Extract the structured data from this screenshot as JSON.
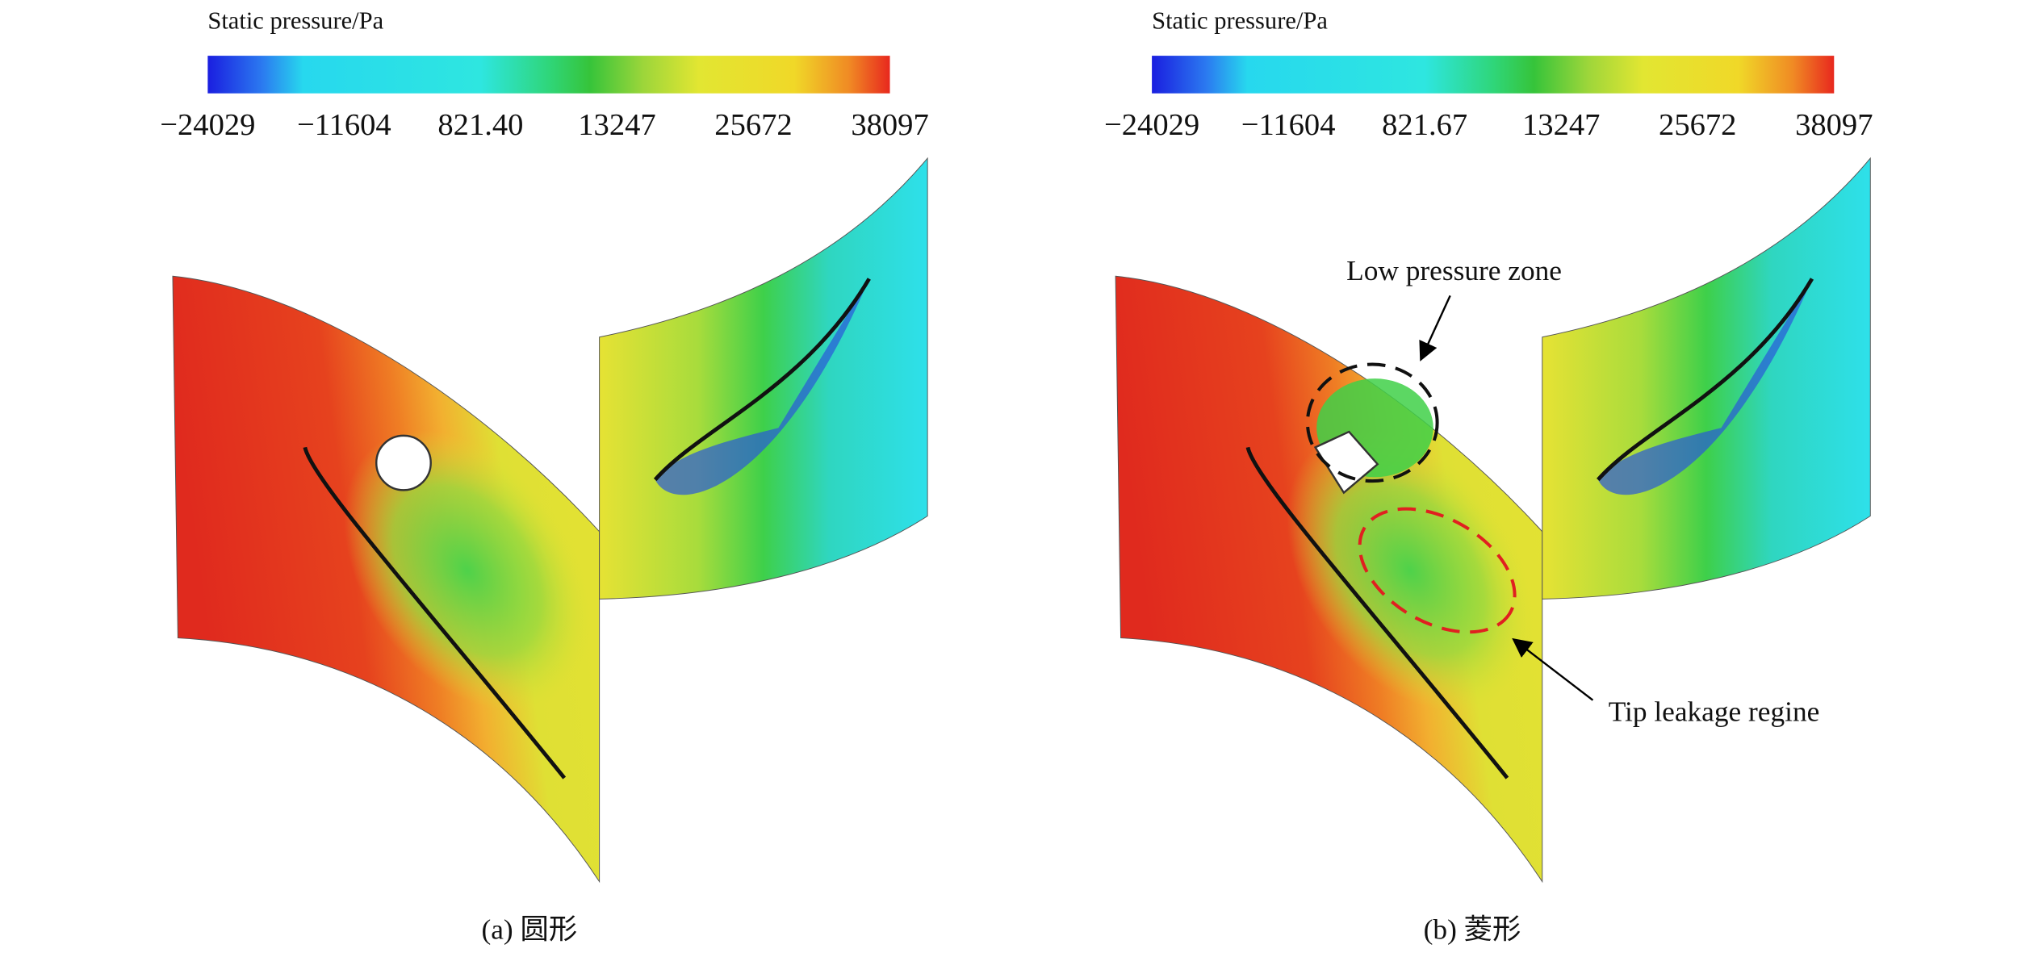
{
  "panels": [
    {
      "colorbar_title": "Static pressure/Pa",
      "colorbar_ticks": [
        "−24029",
        "−11604",
        "821.40",
        "13247",
        "25672",
        "38097"
      ],
      "caption": "(a) 圆形"
    },
    {
      "colorbar_title": "Static pressure/Pa",
      "colorbar_ticks": [
        "−24029",
        "−11604",
        "821.67",
        "13247",
        "25672",
        "38097"
      ],
      "caption": "(b) 菱形",
      "annotations": [
        "Low pressure zone",
        "Tip leakage regine"
      ]
    }
  ]
}
